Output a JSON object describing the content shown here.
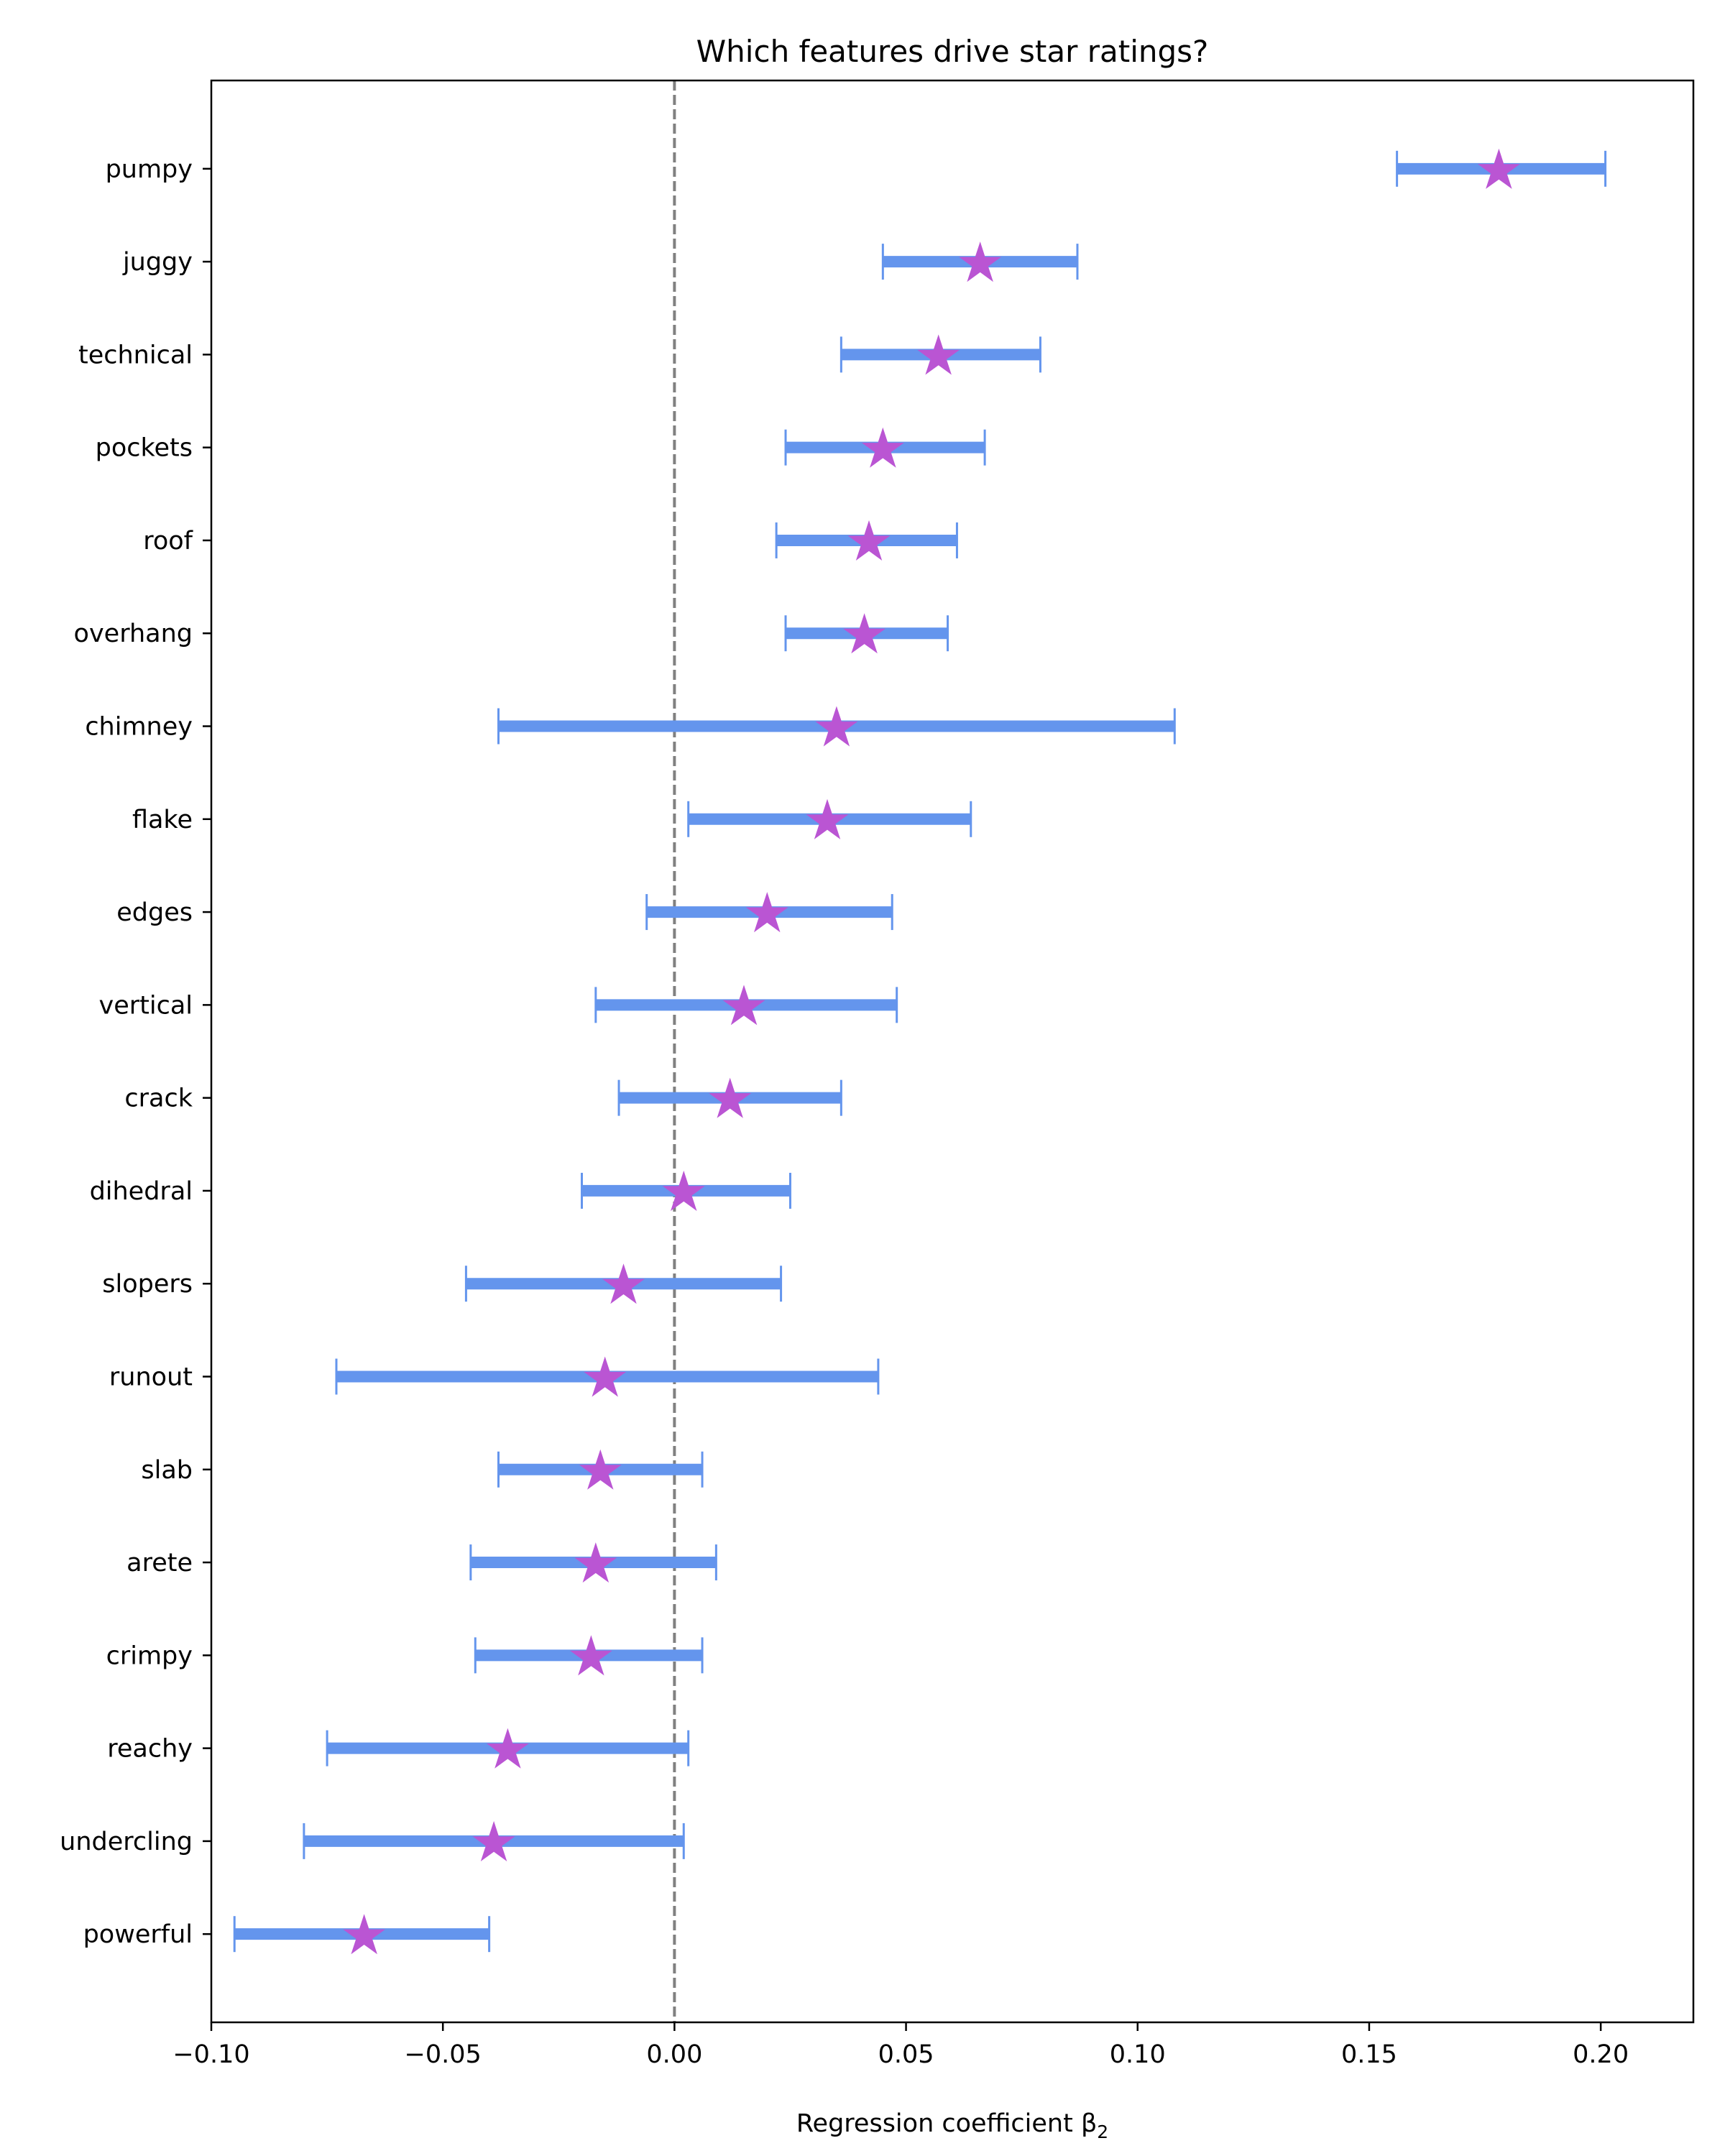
{
  "chart_data": {
    "type": "errorbar",
    "title": "Which features drive star ratings?",
    "xlabel": "Regression coefficient β",
    "xlabel_subscript": "2",
    "ylabel": "",
    "xlim": [
      -0.1,
      0.22
    ],
    "xticks": [
      -0.1,
      -0.05,
      0.0,
      0.05,
      0.1,
      0.15,
      0.2
    ],
    "xtick_labels": [
      "−0.10",
      "−0.05",
      "0.00",
      "0.05",
      "0.10",
      "0.15",
      "0.20"
    ],
    "reference_line": {
      "x": 0.0,
      "style": "dashed",
      "color": "#808080"
    },
    "grid": false,
    "marker": "star",
    "colors": {
      "interval": "#6495ED",
      "point": "#BA55D3",
      "axis": "#000000"
    },
    "categories": [
      "pumpy",
      "juggy",
      "technical",
      "pockets",
      "roof",
      "overhang",
      "chimney",
      "flake",
      "edges",
      "vertical",
      "crack",
      "dihedral",
      "slopers",
      "runout",
      "slab",
      "arete",
      "crimpy",
      "reachy",
      "undercling",
      "powerful"
    ],
    "series": [
      {
        "name": "coefficient",
        "values": [
          0.178,
          0.066,
          0.057,
          0.045,
          0.042,
          0.041,
          0.035,
          0.033,
          0.02,
          0.015,
          0.012,
          0.002,
          -0.011,
          -0.015,
          -0.016,
          -0.017,
          -0.018,
          -0.036,
          -0.039,
          -0.067
        ],
        "lower": [
          0.156,
          0.045,
          0.036,
          0.024,
          0.022,
          0.024,
          -0.038,
          0.003,
          -0.006,
          -0.017,
          -0.012,
          -0.02,
          -0.045,
          -0.073,
          -0.038,
          -0.044,
          -0.043,
          -0.075,
          -0.08,
          -0.095
        ],
        "upper": [
          0.201,
          0.087,
          0.079,
          0.067,
          0.061,
          0.059,
          0.108,
          0.064,
          0.047,
          0.048,
          0.036,
          0.025,
          0.023,
          0.044,
          0.006,
          0.009,
          0.006,
          0.003,
          0.002,
          -0.04
        ]
      }
    ]
  }
}
